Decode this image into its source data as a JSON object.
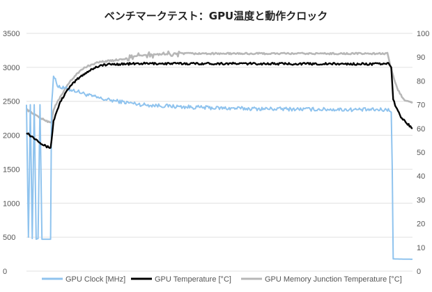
{
  "chart_data": {
    "type": "line",
    "title": "ベンチマークテスト：GPU温度と動作クロック",
    "y_left": {
      "ylim": [
        0,
        3500
      ],
      "ticks": [
        "0",
        "500",
        "1000",
        "1500",
        "2000",
        "2500",
        "3000",
        "3500"
      ]
    },
    "y_right": {
      "ylim": [
        0,
        100
      ],
      "ticks": [
        "0",
        "10",
        "20",
        "30",
        "40",
        "50",
        "60",
        "70",
        "80",
        "90",
        "100"
      ]
    },
    "x_range": [
      0,
      100
    ],
    "grid": true,
    "legend_position": "bottom",
    "series": [
      {
        "name": "GPU Clock [MHz]",
        "axis": "left",
        "color": "#8fc3ee",
        "noise": 28,
        "points": [
          [
            0,
            2450
          ],
          [
            0.5,
            500
          ],
          [
            1,
            2450
          ],
          [
            1.5,
            480
          ],
          [
            2,
            2450
          ],
          [
            2.5,
            470
          ],
          [
            3,
            480
          ],
          [
            3.5,
            2450
          ],
          [
            4,
            470
          ],
          [
            4.5,
            470
          ],
          [
            5,
            470
          ],
          [
            5.5,
            470
          ],
          [
            6,
            470
          ],
          [
            6.4,
            470
          ],
          [
            6.5,
            2450
          ],
          [
            7,
            2880
          ],
          [
            8,
            2740
          ],
          [
            9,
            2700
          ],
          [
            10,
            2690
          ],
          [
            13,
            2650
          ],
          [
            16,
            2590
          ],
          [
            20,
            2530
          ],
          [
            25,
            2490
          ],
          [
            30,
            2450
          ],
          [
            40,
            2420
          ],
          [
            50,
            2400
          ],
          [
            60,
            2390
          ],
          [
            70,
            2385
          ],
          [
            80,
            2380
          ],
          [
            90,
            2375
          ],
          [
            94,
            2375
          ],
          [
            94.6,
            2360
          ],
          [
            95,
            180
          ],
          [
            100,
            175
          ]
        ]
      },
      {
        "name": "GPU Temperature [°C]",
        "axis": "right",
        "color": "#000000",
        "noise": 0.45,
        "points": [
          [
            0,
            58.5
          ],
          [
            1,
            57
          ],
          [
            2,
            56
          ],
          [
            3,
            55
          ],
          [
            4,
            53.5
          ],
          [
            5,
            52.5
          ],
          [
            6,
            52
          ],
          [
            6.3,
            52
          ],
          [
            7,
            63
          ],
          [
            8,
            68
          ],
          [
            9,
            72
          ],
          [
            11,
            77
          ],
          [
            13,
            80.5
          ],
          [
            15,
            83
          ],
          [
            17,
            85
          ],
          [
            19,
            86.5
          ],
          [
            22,
            87
          ],
          [
            30,
            87.3
          ],
          [
            50,
            87.3
          ],
          [
            70,
            87.2
          ],
          [
            90,
            87.1
          ],
          [
            94,
            87.2
          ],
          [
            94.5,
            86
          ],
          [
            95,
            72
          ],
          [
            96,
            68
          ],
          [
            97,
            65
          ],
          [
            98,
            63
          ],
          [
            99,
            61.5
          ],
          [
            100,
            60
          ]
        ]
      },
      {
        "name": "GPU Memory Junction Temperature [°C]",
        "axis": "right",
        "color": "#b7b7b7",
        "noise": 0.35,
        "points": [
          [
            0,
            68
          ],
          [
            2,
            66
          ],
          [
            4,
            64
          ],
          [
            5.5,
            63
          ],
          [
            6.5,
            62.5
          ],
          [
            7,
            68
          ],
          [
            9,
            74
          ],
          [
            11,
            79
          ],
          [
            13,
            83
          ],
          [
            15,
            85.5
          ],
          [
            17,
            87
          ],
          [
            19,
            88
          ],
          [
            22,
            88.5
          ],
          [
            26,
            89.5
          ],
          [
            28,
            90.5
          ],
          [
            33,
            91
          ],
          [
            40,
            91.5
          ],
          [
            45,
            91.5
          ],
          [
            60,
            91.5
          ],
          [
            80,
            91.5
          ],
          [
            93.5,
            91.5
          ],
          [
            94,
            88
          ],
          [
            95,
            82
          ],
          [
            96,
            77
          ],
          [
            97,
            74
          ],
          [
            98,
            72
          ],
          [
            99,
            71.5
          ],
          [
            100,
            71
          ]
        ]
      }
    ]
  }
}
